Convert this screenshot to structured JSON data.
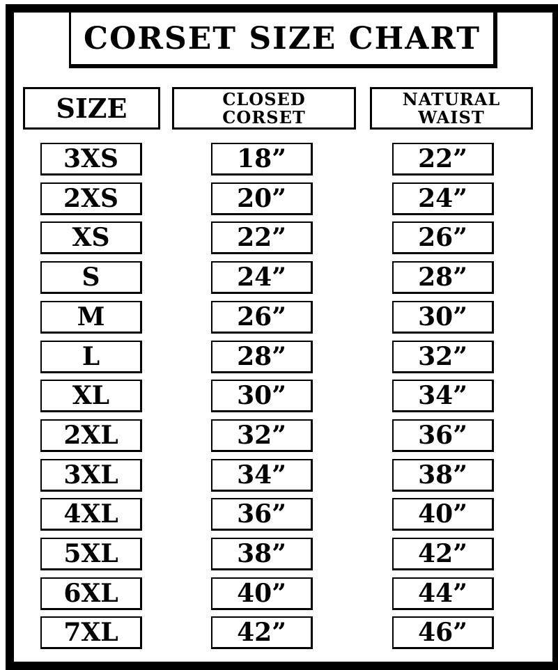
{
  "title": "Corset Size Chart",
  "headers": {
    "size": "SIZE",
    "closed_line1": "CLOSED",
    "closed_line2": "CORSET",
    "natural_line1": "NATURAL",
    "natural_line2": "WAIST"
  },
  "rows": [
    {
      "size": "3XS",
      "closed": "18”",
      "natural": "22”"
    },
    {
      "size": "2XS",
      "closed": "20”",
      "natural": "24”"
    },
    {
      "size": "XS",
      "closed": "22”",
      "natural": "26”"
    },
    {
      "size": "S",
      "closed": "24”",
      "natural": "28”"
    },
    {
      "size": "M",
      "closed": "26”",
      "natural": "30”"
    },
    {
      "size": "L",
      "closed": "28”",
      "natural": "32”"
    },
    {
      "size": "XL",
      "closed": "30”",
      "natural": "34”"
    },
    {
      "size": "2XL",
      "closed": "32”",
      "natural": "36”"
    },
    {
      "size": "3XL",
      "closed": "34”",
      "natural": "38”"
    },
    {
      "size": "4XL",
      "closed": "36”",
      "natural": "40”"
    },
    {
      "size": "5XL",
      "closed": "38”",
      "natural": "42”"
    },
    {
      "size": "6XL",
      "closed": "40”",
      "natural": "44”"
    },
    {
      "size": "7XL",
      "closed": "42”",
      "natural": "46”"
    }
  ]
}
